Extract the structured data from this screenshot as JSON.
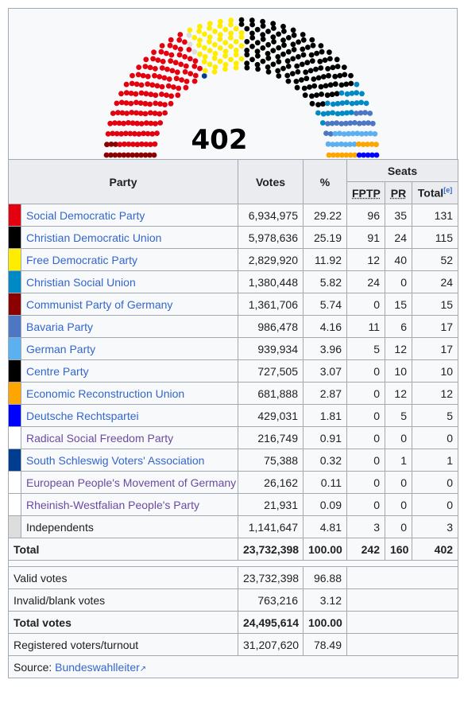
{
  "chart": {
    "total_label": "402",
    "segments": [
      {
        "party": "Communist Party of Germany",
        "seats": 15,
        "color": "#8b0000"
      },
      {
        "party": "Social Democratic Party",
        "seats": 131,
        "color": "#e3000f"
      },
      {
        "party": "South Schleswig Voters' Association",
        "seats": 1,
        "color": "#003c8f"
      },
      {
        "party": "Independents",
        "seats": 3,
        "color": "#dddddd"
      },
      {
        "party": "Free Democratic Party",
        "seats": 52,
        "color": "#ffed00"
      },
      {
        "party": "Centre Party",
        "seats": 10,
        "color": "#000000"
      },
      {
        "party": "Christian Democratic Union",
        "seats": 115,
        "color": "#000000"
      },
      {
        "party": "Christian Social Union",
        "seats": 24,
        "color": "#008ac5"
      },
      {
        "party": "Bavaria Party",
        "seats": 17,
        "color": "#4d77c2"
      },
      {
        "party": "German Party",
        "seats": 17,
        "color": "#5bb0f0"
      },
      {
        "party": "Economic Reconstruction Union",
        "seats": 12,
        "color": "#ffa500"
      },
      {
        "party": "Deutsche Rechtspartei",
        "seats": 5,
        "color": "#0000ff"
      }
    ]
  },
  "headers": {
    "party": "Party",
    "votes": "Votes",
    "pct": "%",
    "seats": "Seats",
    "fptp": "FPTP",
    "pr": "PR",
    "total": "Total",
    "total_note": "[e]"
  },
  "parties": [
    {
      "name": "Social Democratic Party",
      "color": "#e3000f",
      "votes": "6,934,975",
      "pct": "29.22",
      "fptp": "96",
      "pr": "35",
      "total": "131"
    },
    {
      "name": "Christian Democratic Union",
      "color": "#000000",
      "votes": "5,978,636",
      "pct": "25.19",
      "fptp": "91",
      "pr": "24",
      "total": "115"
    },
    {
      "name": "Free Democratic Party",
      "color": "#ffed00",
      "votes": "2,829,920",
      "pct": "11.92",
      "fptp": "12",
      "pr": "40",
      "total": "52"
    },
    {
      "name": "Christian Social Union",
      "color": "#008ac5",
      "votes": "1,380,448",
      "pct": "5.82",
      "fptp": "24",
      "pr": "0",
      "total": "24"
    },
    {
      "name": "Communist Party of Germany",
      "color": "#8b0000",
      "votes": "1,361,706",
      "pct": "5.74",
      "fptp": "0",
      "pr": "15",
      "total": "15"
    },
    {
      "name": "Bavaria Party",
      "color": "#4d77c2",
      "votes": "986,478",
      "pct": "4.16",
      "fptp": "11",
      "pr": "6",
      "total": "17"
    },
    {
      "name": "German Party",
      "color": "#5bb0f0",
      "votes": "939,934",
      "pct": "3.96",
      "fptp": "5",
      "pr": "12",
      "total": "17"
    },
    {
      "name": "Centre Party",
      "color": "#000000",
      "votes": "727,505",
      "pct": "3.07",
      "fptp": "0",
      "pr": "10",
      "total": "10"
    },
    {
      "name": "Economic Reconstruction Union",
      "color": "#ffa500",
      "votes": "681,888",
      "pct": "2.87",
      "fptp": "0",
      "pr": "12",
      "total": "12"
    },
    {
      "name": "Deutsche Rechtspartei",
      "color": "#0000ff",
      "votes": "429,031",
      "pct": "1.81",
      "fptp": "0",
      "pr": "5",
      "total": "5"
    },
    {
      "name": "Radical Social Freedom Party",
      "color": "#ffffff",
      "votes": "216,749",
      "pct": "0.91",
      "fptp": "0",
      "pr": "0",
      "total": "0",
      "visited": true
    },
    {
      "name": "South Schleswig Voters' Association",
      "color": "#003c8f",
      "votes": "75,388",
      "pct": "0.32",
      "fptp": "0",
      "pr": "1",
      "total": "1"
    },
    {
      "name": "European People's Movement of Germany",
      "color": "#ffffff",
      "votes": "26,162",
      "pct": "0.11",
      "fptp": "0",
      "pr": "0",
      "total": "0",
      "visited": true
    },
    {
      "name": "Rheinish-Westfalian People's Party",
      "color": "#ffffff",
      "votes": "21,931",
      "pct": "0.09",
      "fptp": "0",
      "pr": "0",
      "total": "0",
      "visited": true
    },
    {
      "name": "Independents",
      "color": "#dddddd",
      "votes": "1,141,647",
      "pct": "4.81",
      "fptp": "3",
      "pr": "0",
      "total": "3",
      "plain": true
    }
  ],
  "total_row": {
    "label": "Total",
    "votes": "23,732,398",
    "pct": "100.00",
    "fptp": "242",
    "pr": "160",
    "total": "402"
  },
  "summary": [
    {
      "label": "Valid votes",
      "votes": "23,732,398",
      "pct": "96.88",
      "bold": false
    },
    {
      "label": "Invalid/blank votes",
      "votes": "763,216",
      "pct": "3.12",
      "bold": false
    },
    {
      "label": "Total votes",
      "votes": "24,495,614",
      "pct": "100.00",
      "bold": true
    },
    {
      "label": "Registered voters/turnout",
      "votes": "31,207,620",
      "pct": "78.49",
      "bold": false
    }
  ],
  "source": {
    "label": "Source: ",
    "link": "Bundeswahlleiter"
  }
}
